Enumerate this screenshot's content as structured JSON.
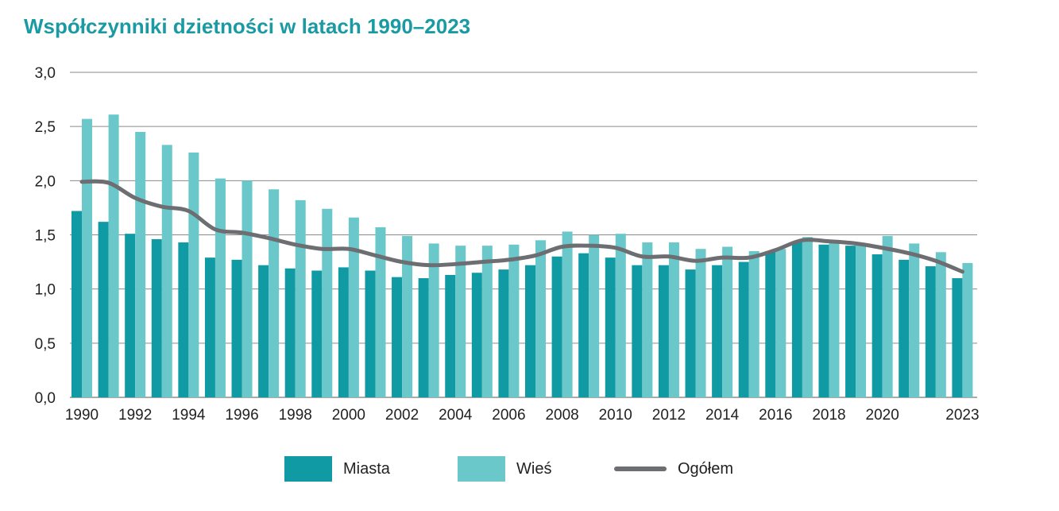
{
  "chart_data": {
    "type": "bar",
    "title": "Współczynniki dzietności w latach 1990–2023",
    "x": [
      1990,
      1991,
      1992,
      1993,
      1994,
      1995,
      1996,
      1997,
      1998,
      1999,
      2000,
      2001,
      2002,
      2003,
      2004,
      2005,
      2006,
      2007,
      2008,
      2009,
      2010,
      2011,
      2012,
      2013,
      2014,
      2015,
      2016,
      2017,
      2018,
      2019,
      2020,
      2021,
      2022,
      2023
    ],
    "x_tick_labels": [
      "1990",
      "",
      "1992",
      "",
      "1994",
      "",
      "1996",
      "",
      "1998",
      "",
      "2000",
      "",
      "2002",
      "",
      "2004",
      "",
      "2006",
      "",
      "2008",
      "",
      "2010",
      "",
      "2012",
      "",
      "2014",
      "",
      "2016",
      "",
      "2018",
      "",
      "2020",
      "",
      "",
      "2023"
    ],
    "y_ticks": [
      "0,0",
      "0,5",
      "1,0",
      "1,5",
      "2,0",
      "2,5",
      "3,0"
    ],
    "ylim": [
      0,
      3.0
    ],
    "grid": true,
    "legend_position": "bottom",
    "series": [
      {
        "name": "Miasta",
        "type": "bar",
        "color": "#0f9aa4",
        "values": [
          1.72,
          1.62,
          1.51,
          1.46,
          1.43,
          1.29,
          1.27,
          1.22,
          1.19,
          1.17,
          1.2,
          1.17,
          1.11,
          1.1,
          1.13,
          1.15,
          1.18,
          1.22,
          1.3,
          1.33,
          1.29,
          1.22,
          1.22,
          1.18,
          1.22,
          1.25,
          1.35,
          1.44,
          1.41,
          1.4,
          1.32,
          1.27,
          1.21,
          1.1
        ]
      },
      {
        "name": "Wieś",
        "type": "bar",
        "color": "#6ac8cb",
        "values": [
          2.57,
          2.61,
          2.45,
          2.33,
          2.26,
          2.02,
          2.0,
          1.92,
          1.82,
          1.74,
          1.66,
          1.57,
          1.49,
          1.42,
          1.4,
          1.4,
          1.41,
          1.45,
          1.53,
          1.5,
          1.51,
          1.43,
          1.43,
          1.37,
          1.39,
          1.35,
          1.37,
          1.48,
          1.43,
          1.42,
          1.49,
          1.42,
          1.34,
          1.24
        ]
      },
      {
        "name": "Ogółem",
        "type": "line",
        "color": "#6d6e71",
        "values": [
          1.99,
          1.98,
          1.84,
          1.76,
          1.72,
          1.55,
          1.52,
          1.47,
          1.41,
          1.37,
          1.37,
          1.31,
          1.25,
          1.22,
          1.23,
          1.25,
          1.27,
          1.31,
          1.39,
          1.4,
          1.38,
          1.3,
          1.3,
          1.26,
          1.29,
          1.29,
          1.36,
          1.45,
          1.44,
          1.42,
          1.38,
          1.33,
          1.26,
          1.16
        ]
      }
    ]
  }
}
